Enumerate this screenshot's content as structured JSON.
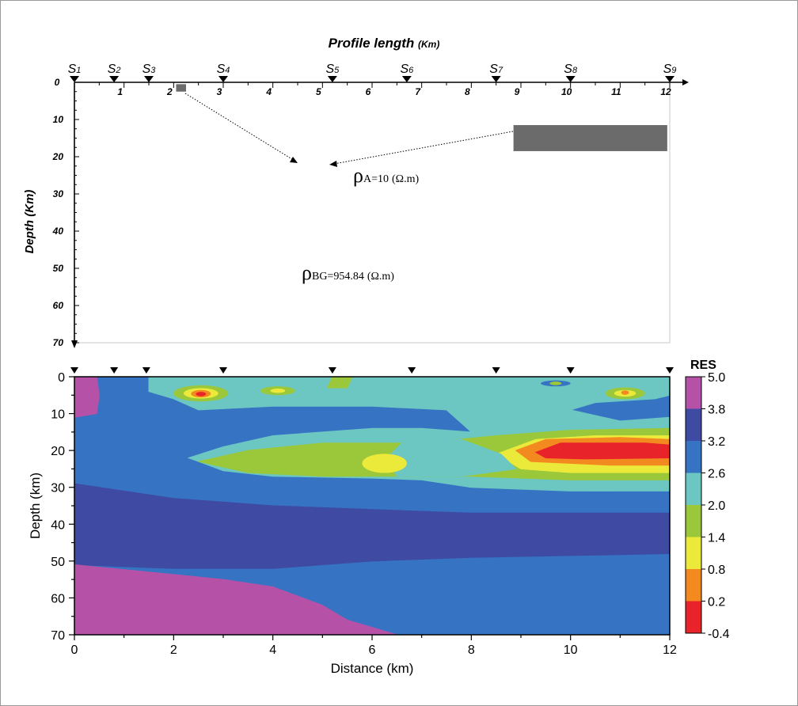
{
  "top_panel": {
    "title": "Profile length",
    "title_unit": "(Km)",
    "y_axis_label": "Depth (Km)",
    "x_ticks": [
      "0",
      "1",
      "2",
      "3",
      "4",
      "5",
      "6",
      "7",
      "8",
      "9",
      "10",
      "11",
      "12"
    ],
    "x_tick_values": [
      0,
      1,
      2,
      3,
      4,
      5,
      6,
      7,
      8,
      9,
      10,
      11,
      12
    ],
    "y_ticks": [
      "0",
      "10",
      "20",
      "30",
      "40",
      "50",
      "60",
      "70"
    ],
    "y_tick_values": [
      0,
      10,
      20,
      30,
      40,
      50,
      60,
      70
    ],
    "x_range_km": [
      0,
      12
    ],
    "depth_range_km": [
      0,
      70
    ],
    "stations": [
      {
        "label": "S1",
        "x": 0.0
      },
      {
        "label": "S2",
        "x": 0.8
      },
      {
        "label": "S3",
        "x": 1.5
      },
      {
        "label": "S4",
        "x": 3.0
      },
      {
        "label": "S5",
        "x": 5.2
      },
      {
        "label": "S6",
        "x": 6.7
      },
      {
        "label": "S7",
        "x": 8.5
      },
      {
        "label": "S8",
        "x": 10.0
      },
      {
        "label": "S9",
        "x": 12.0
      }
    ],
    "anomalies": [
      {
        "name": "small-body",
        "x0": 2.05,
        "x1": 2.25,
        "z0": 0.5,
        "z1": 2.5,
        "color": "#6b6b6b"
      },
      {
        "name": "large-body",
        "x0": 8.85,
        "x1": 11.95,
        "z0": 11.5,
        "z1": 18.5,
        "color": "#6b6b6b"
      }
    ],
    "rho_anomaly": {
      "symbol": "ρ",
      "sub": "A=10",
      "unit": "(Ω.m)"
    },
    "rho_background": {
      "symbol": "ρ",
      "sub": "BG=954.84",
      "unit": "(Ω.m)"
    }
  },
  "chart_data": {
    "type": "heatmap",
    "xlabel": "Distance (km)",
    "ylabel": "Depth (km)",
    "xlim": [
      0,
      12
    ],
    "ylim": [
      70,
      0
    ],
    "x_ticks": [
      0,
      2,
      4,
      6,
      8,
      10,
      12
    ],
    "y_ticks": [
      0,
      10,
      20,
      30,
      40,
      50,
      60,
      70
    ],
    "station_x": [
      0.0,
      0.8,
      1.45,
      3.0,
      5.2,
      6.8,
      8.5,
      10.0,
      12.0
    ],
    "colorbar": {
      "title": "RES",
      "labels": [
        "5.0",
        "3.8",
        "3.2",
        "2.6",
        "2.0",
        "1.4",
        "0.8",
        "0.2",
        "-0.4"
      ],
      "bands": [
        {
          "value": 4.4,
          "color": "#b552a8"
        },
        {
          "value": 3.5,
          "color": "#3f4aa3"
        },
        {
          "value": 2.9,
          "color": "#3673c2"
        },
        {
          "value": 2.3,
          "color": "#6cc7c2"
        },
        {
          "value": 1.7,
          "color": "#9bc73a"
        },
        {
          "value": 1.1,
          "color": "#ebea3a"
        },
        {
          "value": 0.5,
          "color": "#f38a20"
        },
        {
          "value": -0.1,
          "color": "#e8232a"
        }
      ]
    },
    "regions": [
      {
        "value": 3.5,
        "outline": [
          [
            0,
            29
          ],
          [
            2,
            33
          ],
          [
            4,
            35
          ],
          [
            6,
            36
          ],
          [
            8,
            37
          ],
          [
            10,
            37
          ],
          [
            12,
            37
          ],
          [
            12,
            48
          ],
          [
            10,
            48.5
          ],
          [
            8,
            49
          ],
          [
            6,
            50
          ],
          [
            4,
            52
          ],
          [
            2,
            52
          ],
          [
            0,
            51
          ]
        ]
      },
      {
        "value": 2.9,
        "outline": [
          [
            0,
            14
          ],
          [
            1.3,
            16
          ],
          [
            1.4,
            26
          ],
          [
            2.5,
            30
          ],
          [
            4,
            33
          ],
          [
            6,
            33.5
          ],
          [
            8,
            33.5
          ],
          [
            10,
            32
          ],
          [
            12,
            31
          ],
          [
            12,
            12
          ],
          [
            10,
            12
          ],
          [
            8,
            12
          ],
          [
            6,
            12
          ],
          [
            4,
            12
          ],
          [
            2,
            12
          ],
          [
            1.5,
            10
          ]
        ]
      },
      {
        "value": 2.3,
        "outline": [
          [
            1.5,
            0
          ],
          [
            4,
            0
          ],
          [
            8,
            0
          ],
          [
            10,
            0
          ],
          [
            12,
            0
          ],
          [
            12,
            5
          ],
          [
            11.7,
            6
          ],
          [
            10.5,
            7
          ],
          [
            10,
            9
          ],
          [
            11,
            12
          ],
          [
            12,
            11
          ],
          [
            12,
            31
          ],
          [
            10,
            31
          ],
          [
            8,
            30
          ],
          [
            7,
            28
          ],
          [
            6,
            27.5
          ],
          [
            4,
            27
          ],
          [
            3,
            25.5
          ],
          [
            2.3,
            22
          ],
          [
            3,
            19
          ],
          [
            4,
            16
          ],
          [
            6,
            14
          ],
          [
            7,
            14
          ],
          [
            8,
            15
          ],
          [
            7.5,
            9
          ],
          [
            6,
            8
          ],
          [
            4,
            8
          ],
          [
            2.5,
            9
          ],
          [
            2,
            6
          ],
          [
            1.5,
            4
          ]
        ]
      },
      {
        "value": 1.7,
        "outline": [
          [
            2.5,
            23
          ],
          [
            3.5,
            20
          ],
          [
            5,
            18
          ],
          [
            7,
            18
          ],
          [
            8.5,
            16
          ],
          [
            10,
            14.5
          ],
          [
            12,
            14
          ],
          [
            12,
            28
          ],
          [
            10,
            28
          ],
          [
            8,
            27
          ],
          [
            7,
            27
          ],
          [
            5,
            27
          ],
          [
            3.5,
            26
          ]
        ]
      },
      {
        "value": 1.1,
        "outline": [
          [
            8.5,
            21
          ],
          [
            9.3,
            17
          ],
          [
            10.5,
            16
          ],
          [
            12,
            16
          ],
          [
            12,
            26
          ],
          [
            10,
            26
          ],
          [
            9,
            25
          ]
        ]
      },
      {
        "value": 2.3,
        "outline": [
          [
            6.6,
            18
          ],
          [
            7.8,
            17
          ],
          [
            8.6,
            21
          ],
          [
            8.9,
            25
          ],
          [
            7.8,
            27
          ],
          [
            6.5,
            27
          ],
          [
            6.3,
            22
          ]
        ]
      },
      {
        "value": 0.5,
        "outline": [
          [
            8.9,
            20
          ],
          [
            9.5,
            17
          ],
          [
            11,
            16.5
          ],
          [
            12,
            17
          ],
          [
            12,
            24
          ],
          [
            10.8,
            24
          ],
          [
            9.2,
            23
          ]
        ]
      },
      {
        "value": -0.1,
        "outline": [
          [
            9.3,
            20.5
          ],
          [
            9.8,
            18
          ],
          [
            11.5,
            18
          ],
          [
            12,
            18.5
          ],
          [
            12,
            22
          ],
          [
            10.3,
            22.3
          ],
          [
            9.5,
            22
          ]
        ]
      },
      {
        "value": 4.4,
        "outline": [
          [
            0,
            0
          ],
          [
            0.45,
            0
          ],
          [
            0.5,
            5
          ],
          [
            0.45,
            10
          ],
          [
            0,
            11
          ]
        ]
      },
      {
        "value": 4.4,
        "outline": [
          [
            0,
            51
          ],
          [
            1.5,
            53
          ],
          [
            3,
            55
          ],
          [
            4,
            57
          ],
          [
            5,
            62
          ],
          [
            5.5,
            66
          ],
          [
            6.5,
            70
          ],
          [
            0,
            70
          ]
        ]
      },
      {
        "value": 1.7,
        "outline": [
          [
            5.2,
            0
          ],
          [
            5.6,
            0
          ],
          [
            5.5,
            3
          ],
          [
            5.1,
            3
          ]
        ]
      }
    ],
    "blobs": [
      {
        "value": 1.7,
        "cx": 2.55,
        "cz": 4.5,
        "rx": 0.55,
        "rz": 2.2
      },
      {
        "value": 1.1,
        "cx": 2.55,
        "cz": 4.5,
        "rx": 0.35,
        "rz": 1.4
      },
      {
        "value": 0.5,
        "cx": 2.55,
        "cz": 4.6,
        "rx": 0.2,
        "rz": 1.0
      },
      {
        "value": -0.1,
        "cx": 2.55,
        "cz": 4.7,
        "rx": 0.1,
        "rz": 0.6
      },
      {
        "value": 1.7,
        "cx": 4.1,
        "cz": 3.8,
        "rx": 0.35,
        "rz": 1.2
      },
      {
        "value": 1.1,
        "cx": 4.1,
        "cz": 3.8,
        "rx": 0.15,
        "rz": 0.6
      },
      {
        "value": 1.1,
        "cx": 6.25,
        "cz": 23.5,
        "rx": 0.45,
        "rz": 2.6
      },
      {
        "value": 1.7,
        "cx": 11.1,
        "cz": 4.5,
        "rx": 0.4,
        "rz": 1.6
      },
      {
        "value": 1.1,
        "cx": 11.1,
        "cz": 4.5,
        "rx": 0.22,
        "rz": 0.9
      },
      {
        "value": 0.5,
        "cx": 11.1,
        "cz": 4.3,
        "rx": 0.08,
        "rz": 0.6
      },
      {
        "value": 2.9,
        "cx": 9.7,
        "cz": 1.8,
        "rx": 0.3,
        "rz": 0.8
      },
      {
        "value": 1.7,
        "cx": 9.7,
        "cz": 1.8,
        "rx": 0.12,
        "rz": 0.5
      }
    ]
  }
}
